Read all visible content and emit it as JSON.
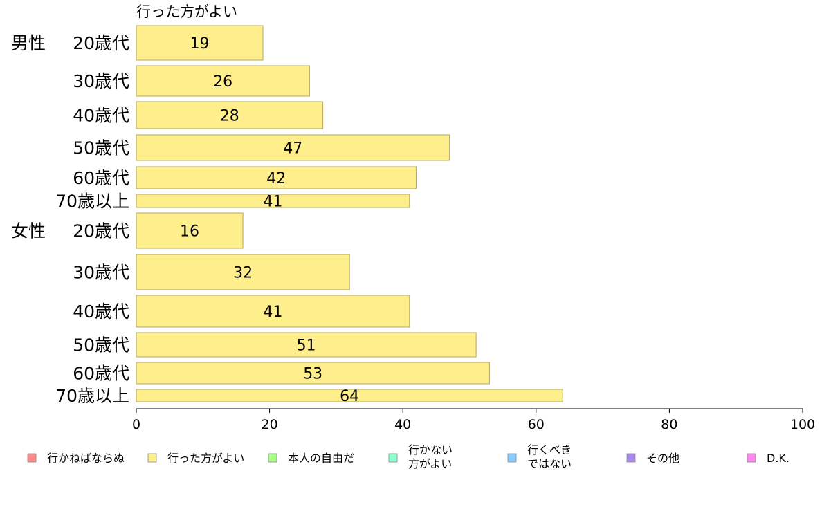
{
  "chart_data": {
    "type": "bar",
    "orientation": "horizontal",
    "series_title": "行った方がよい",
    "rows": [
      {
        "group": "男性",
        "label": "20歳代",
        "value": 19
      },
      {
        "group": "",
        "label": "30歳代",
        "value": 26
      },
      {
        "group": "",
        "label": "40歳代",
        "value": 28
      },
      {
        "group": "",
        "label": "50歳代",
        "value": 47
      },
      {
        "group": "",
        "label": "60歳代",
        "value": 42
      },
      {
        "group": "",
        "label": "70歳以上",
        "value": 41
      },
      {
        "group": "女性",
        "label": "20歳代",
        "value": 16
      },
      {
        "group": "",
        "label": "30歳代",
        "value": 32
      },
      {
        "group": "",
        "label": "40歳代",
        "value": 41
      },
      {
        "group": "",
        "label": "50歳代",
        "value": 51
      },
      {
        "group": "",
        "label": "60歳代",
        "value": 53
      },
      {
        "group": "",
        "label": "70歳以上",
        "value": 64
      }
    ],
    "xlim": [
      0,
      100
    ],
    "xticks": [
      0,
      20,
      40,
      60,
      80,
      100
    ],
    "bar_color": "#ffee8c",
    "bar_stroke": "#b0a860",
    "legend": [
      {
        "lines": [
          "行かねばならぬ"
        ],
        "color": "#ff8888"
      },
      {
        "lines": [
          "行った方がよい"
        ],
        "color": "#ffee8c"
      },
      {
        "lines": [
          "本人の自由だ"
        ],
        "color": "#aaff88"
      },
      {
        "lines": [
          "行かない",
          "方がよい"
        ],
        "color": "#88ffcc"
      },
      {
        "lines": [
          "行くべき",
          "ではない"
        ],
        "color": "#88ccff"
      },
      {
        "lines": [
          "その他"
        ],
        "color": "#aa88ee"
      },
      {
        "lines": [
          "D.K."
        ],
        "color": "#ff88ee"
      }
    ]
  }
}
